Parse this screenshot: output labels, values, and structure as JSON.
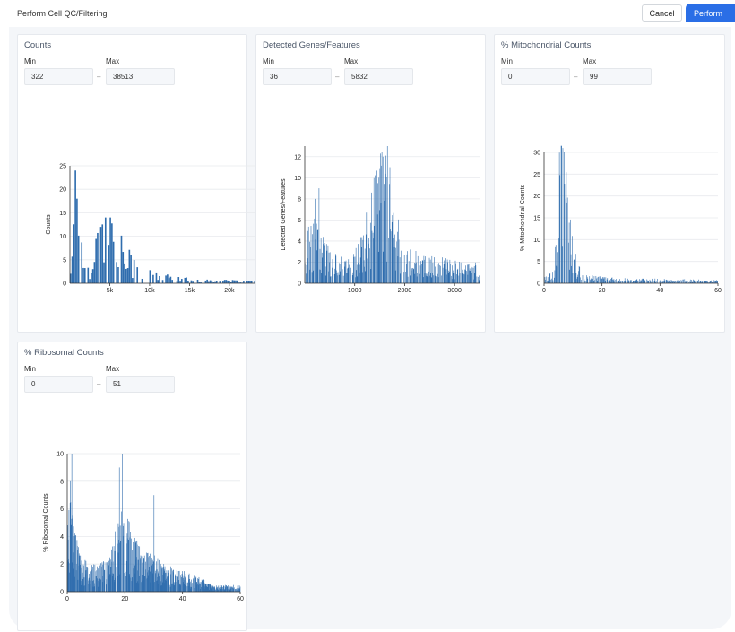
{
  "header": {
    "title": "Perform Cell QC/Filtering",
    "cancel_label": "Cancel",
    "perform_label": "Perform"
  },
  "colors": {
    "bar": "#2f6dae",
    "grid": "#e8eaed",
    "accent": "#2a6ee6"
  },
  "filters": [
    {
      "id": "counts",
      "title": "Counts",
      "min_label": "Min",
      "max_label": "Max",
      "min_value": "322",
      "max_value": "38513",
      "separator": "–"
    },
    {
      "id": "genes",
      "title": "Detected Genes/Features",
      "min_label": "Min",
      "max_label": "Max",
      "min_value": "36",
      "max_value": "5832",
      "separator": "–"
    },
    {
      "id": "mito",
      "title": "% Mitochondrial Counts",
      "min_label": "Min",
      "max_label": "Max",
      "min_value": "0",
      "max_value": "99",
      "separator": "–"
    },
    {
      "id": "ribo",
      "title": "% Ribosomal Counts",
      "min_label": "Min",
      "max_label": "Max",
      "min_value": "0",
      "max_value": "51",
      "separator": "–"
    }
  ],
  "chart_data": [
    {
      "type": "bar",
      "ylabel": "Counts",
      "xlim": [
        0,
        23500
      ],
      "ylim": [
        0,
        25
      ],
      "xticks": [
        5000,
        10000,
        15000,
        20000
      ],
      "xtick_labels": [
        "5k",
        "10k",
        "15k",
        "20k"
      ],
      "yticks": [
        0,
        5,
        10,
        15,
        20,
        25
      ],
      "ytick_labels": [
        "0",
        "5",
        "10",
        "15",
        "20",
        "25"
      ],
      "grid": true,
      "bin_width": 200,
      "profile": [
        {
          "x": 0,
          "y": 2
        },
        {
          "x": 400,
          "y": 8
        },
        {
          "x": 700,
          "y": 15
        },
        {
          "x": 1000,
          "y": 12
        },
        {
          "x": 1500,
          "y": 6
        },
        {
          "x": 2200,
          "y": 2
        },
        {
          "x": 3000,
          "y": 6
        },
        {
          "x": 3800,
          "y": 10
        },
        {
          "x": 4600,
          "y": 12
        },
        {
          "x": 5300,
          "y": 10
        },
        {
          "x": 6200,
          "y": 7
        },
        {
          "x": 7200,
          "y": 5
        },
        {
          "x": 8500,
          "y": 3
        },
        {
          "x": 10000,
          "y": 2
        },
        {
          "x": 13000,
          "y": 1
        },
        {
          "x": 17000,
          "y": 0.5
        },
        {
          "x": 23500,
          "y": 0.4
        }
      ],
      "peaks": [
        {
          "x": 600,
          "y": 24
        },
        {
          "x": 800,
          "y": 18
        },
        {
          "x": 4500,
          "y": 14
        },
        {
          "x": 5000,
          "y": 14
        },
        {
          "x": 3900,
          "y": 12
        }
      ]
    },
    {
      "type": "bar",
      "ylabel": "Detected Genes/Features",
      "xlim": [
        0,
        3500
      ],
      "ylim": [
        0,
        13
      ],
      "xticks": [
        1000,
        2000,
        3000
      ],
      "xtick_labels": [
        "1000",
        "2000",
        "3000"
      ],
      "yticks": [
        0,
        2,
        4,
        6,
        8,
        10,
        12
      ],
      "ytick_labels": [
        "0",
        "2",
        "4",
        "6",
        "8",
        "10",
        "12"
      ],
      "grid": true,
      "bin_width": 10,
      "profile": [
        {
          "x": 0,
          "y": 3
        },
        {
          "x": 150,
          "y": 4
        },
        {
          "x": 300,
          "y": 3.5
        },
        {
          "x": 500,
          "y": 2
        },
        {
          "x": 800,
          "y": 1.5
        },
        {
          "x": 1100,
          "y": 2.5
        },
        {
          "x": 1300,
          "y": 5
        },
        {
          "x": 1500,
          "y": 8
        },
        {
          "x": 1650,
          "y": 8
        },
        {
          "x": 1800,
          "y": 5
        },
        {
          "x": 2000,
          "y": 2.5
        },
        {
          "x": 2300,
          "y": 1.8
        },
        {
          "x": 2700,
          "y": 1.6
        },
        {
          "x": 3100,
          "y": 1.4
        },
        {
          "x": 3500,
          "y": 1.2
        }
      ],
      "peaks": [
        {
          "x": 1650,
          "y": 13
        },
        {
          "x": 1560,
          "y": 12
        },
        {
          "x": 1700,
          "y": 11
        },
        {
          "x": 280,
          "y": 9
        },
        {
          "x": 200,
          "y": 8
        },
        {
          "x": 1480,
          "y": 10
        }
      ]
    },
    {
      "type": "bar",
      "ylabel": "% Mitochondrial Counts",
      "xlim": [
        0,
        60
      ],
      "ylim": [
        0,
        30
      ],
      "xticks": [
        0,
        20,
        40,
        60
      ],
      "xtick_labels": [
        "0",
        "20",
        "40",
        "60"
      ],
      "yticks": [
        0,
        5,
        10,
        15,
        20,
        25,
        30
      ],
      "ytick_labels": [
        "0",
        "5",
        "10",
        "15",
        "20",
        "25",
        "30"
      ],
      "grid": true,
      "bin_width": 0.2,
      "profile": [
        {
          "x": 0,
          "y": 1
        },
        {
          "x": 3,
          "y": 2
        },
        {
          "x": 4.5,
          "y": 10
        },
        {
          "x": 5.5,
          "y": 22
        },
        {
          "x": 6.5,
          "y": 28
        },
        {
          "x": 7.5,
          "y": 20
        },
        {
          "x": 8.5,
          "y": 12
        },
        {
          "x": 10,
          "y": 6
        },
        {
          "x": 12,
          "y": 2.5
        },
        {
          "x": 15,
          "y": 1.2
        },
        {
          "x": 25,
          "y": 0.8
        },
        {
          "x": 60,
          "y": 0.5
        }
      ],
      "peaks": [
        {
          "x": 6.6,
          "y": 31
        },
        {
          "x": 6.9,
          "y": 30
        }
      ]
    },
    {
      "type": "bar",
      "ylabel": "% Ribosomal Counts",
      "xlim": [
        0,
        60
      ],
      "ylim": [
        0,
        10
      ],
      "xticks": [
        0,
        20,
        40,
        60
      ],
      "xtick_labels": [
        "0",
        "20",
        "40",
        "60"
      ],
      "yticks": [
        0,
        2,
        4,
        6,
        8,
        10
      ],
      "ytick_labels": [
        "0",
        "2",
        "4",
        "6",
        "8",
        "10"
      ],
      "grid": true,
      "bin_width": 0.1,
      "profile": [
        {
          "x": 0,
          "y": 3
        },
        {
          "x": 1.5,
          "y": 5
        },
        {
          "x": 3,
          "y": 3
        },
        {
          "x": 5,
          "y": 1.5
        },
        {
          "x": 10,
          "y": 1.2
        },
        {
          "x": 14,
          "y": 1.5
        },
        {
          "x": 17,
          "y": 3
        },
        {
          "x": 19,
          "y": 4
        },
        {
          "x": 22,
          "y": 3
        },
        {
          "x": 26,
          "y": 2
        },
        {
          "x": 32,
          "y": 1.5
        },
        {
          "x": 40,
          "y": 1
        },
        {
          "x": 47,
          "y": 0.6
        },
        {
          "x": 51,
          "y": 0.3
        }
      ],
      "peaks": [
        {
          "x": 1.5,
          "y": 10
        },
        {
          "x": 19,
          "y": 10
        },
        {
          "x": 18,
          "y": 9
        },
        {
          "x": 1,
          "y": 8
        },
        {
          "x": 30,
          "y": 7
        }
      ]
    }
  ]
}
